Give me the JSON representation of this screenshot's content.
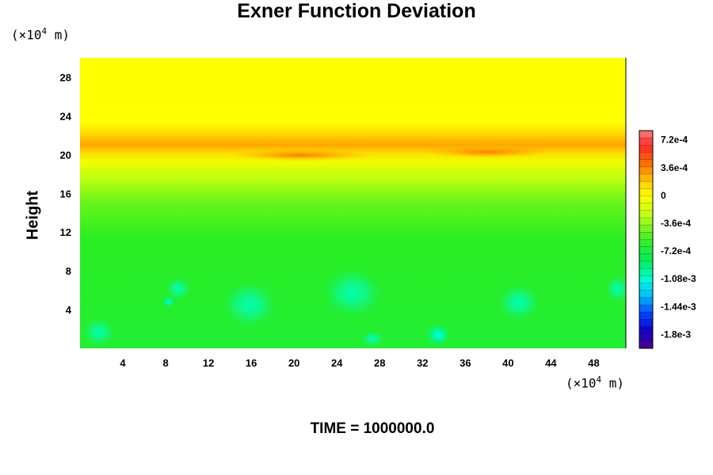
{
  "chart_data": {
    "type": "heatmap",
    "title": "Exner Function Deviation",
    "ylabel": "Height",
    "xlabel": "",
    "x_unit": "m",
    "y_unit": "m",
    "unit_scale_label": "(×10⁴ m)",
    "unit_scale_base": "(×10",
    "unit_scale_exp": "4",
    "unit_scale_suffix": " m)",
    "xlim": [
      0,
      51
    ],
    "ylim": [
      0,
      30
    ],
    "x_ticks": [
      4,
      8,
      12,
      16,
      20,
      24,
      28,
      32,
      36,
      40,
      44,
      48
    ],
    "x_tick_labels": [
      "4",
      "8",
      "12",
      "16",
      "20",
      "24",
      "28",
      "32",
      "36",
      "40",
      "44",
      "48"
    ],
    "y_ticks": [
      4,
      8,
      12,
      16,
      20,
      24,
      28
    ],
    "y_tick_labels": [
      "4",
      "8",
      "12",
      "16",
      "20",
      "24",
      "28"
    ],
    "colorbar": {
      "range": [
        -0.00198,
        0.00084
      ],
      "ticks": [
        0.00072,
        0.00036,
        0,
        -0.00036,
        -0.00072,
        -0.00108,
        -0.00144,
        -0.0018
      ],
      "tick_labels": [
        "7.2e-4",
        "3.6e-4",
        "0",
        "-3.6e-4",
        "-7.2e-4",
        "-1.08e-3",
        "-1.44e-3",
        "-1.8e-3"
      ]
    },
    "field_description_values": {
      "upper_level_value": 0.0,
      "band_height": 20,
      "band_peak_value": 0.0006,
      "lower_level_value": -0.0007,
      "anomaly_min_value": -0.0012
    },
    "grid": false,
    "legend": "right"
  },
  "footer": {
    "time_text": "TIME = 1000000.0"
  },
  "colors": {
    "yellow": "#ffff00",
    "orange": "#ff9900",
    "green": "#22ee22",
    "cyan": "#00ffcc",
    "background": "#ffffff"
  }
}
